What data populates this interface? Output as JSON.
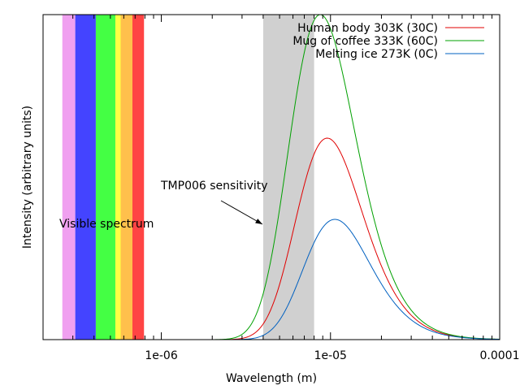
{
  "chart_data": {
    "type": "line",
    "title": "",
    "xlabel": "Wavelength (m)",
    "ylabel": "Intensity (arbitrary units)",
    "xscale": "log",
    "xlim": [
      2e-07,
      0.0001
    ],
    "ylim": [
      0,
      1
    ],
    "grid": false,
    "legend_position": "top-right",
    "x_ticks": [
      {
        "value": 1e-06,
        "label": "1e-06"
      },
      {
        "value": 1e-05,
        "label": "1e-05"
      },
      {
        "value": 0.0001,
        "label": "0.0001"
      }
    ],
    "series": [
      {
        "name": "Human body 303K (30C)",
        "temperature_k": 303,
        "color": "#e00000",
        "peak_value": 0.62
      },
      {
        "name": "Mug of coffee 333K (60C)",
        "temperature_k": 333,
        "color": "#00a000",
        "peak_value": 1.0
      },
      {
        "name": "Melting ice 273K (0C)",
        "temperature_k": 273,
        "color": "#0060c0",
        "peak_value": 0.37
      }
    ],
    "visible_spectrum": {
      "label": "Visible spectrum",
      "bands": [
        {
          "from": 2.6e-07,
          "to": 3.1e-07,
          "color": "#f0a0f0"
        },
        {
          "from": 3.1e-07,
          "to": 4.1e-07,
          "color": "#4444ff"
        },
        {
          "from": 4.1e-07,
          "to": 5.35e-07,
          "color": "#44ff44"
        },
        {
          "from": 5.35e-07,
          "to": 5.75e-07,
          "color": "#ffff44"
        },
        {
          "from": 5.75e-07,
          "to": 6.75e-07,
          "color": "#ffc04c"
        },
        {
          "from": 6.75e-07,
          "to": 7.9e-07,
          "color": "#ff4444"
        }
      ]
    },
    "sensor_band": {
      "label": "TMP006 sensitivity",
      "from": 4e-06,
      "to": 8e-06,
      "color": "#d0d0d0"
    }
  }
}
